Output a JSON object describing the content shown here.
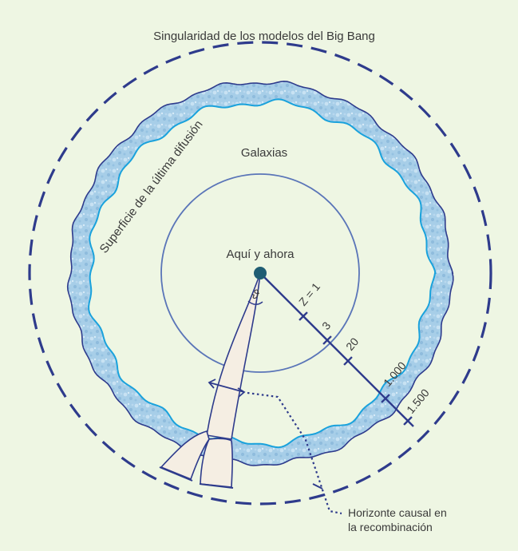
{
  "labels": {
    "singularity": "Singularidad de los modelos del Big Bang",
    "last_scattering": "Superficie de la última difusión",
    "galaxies": "Galaxias",
    "here_now": "Aquí y ahora",
    "theta": "ϑ",
    "horizon_line1": "Horizonte causal en",
    "horizon_line2": "la recombinación"
  },
  "redshift_ticks": [
    {
      "label": "Z = 1"
    },
    {
      "label": "3"
    },
    {
      "label": "20"
    },
    {
      "label": "1.000"
    },
    {
      "label": "1.500"
    }
  ],
  "colors": {
    "background": "#eef6e3",
    "dark_blue": "#2e3b8c",
    "shell_fill": "#a9cfe8",
    "shell_wave": "#1aa2dc",
    "galaxy_circle": "#5a75b8",
    "cone_fill": "#f5eee3",
    "observer_dot": "#1f5d73"
  }
}
